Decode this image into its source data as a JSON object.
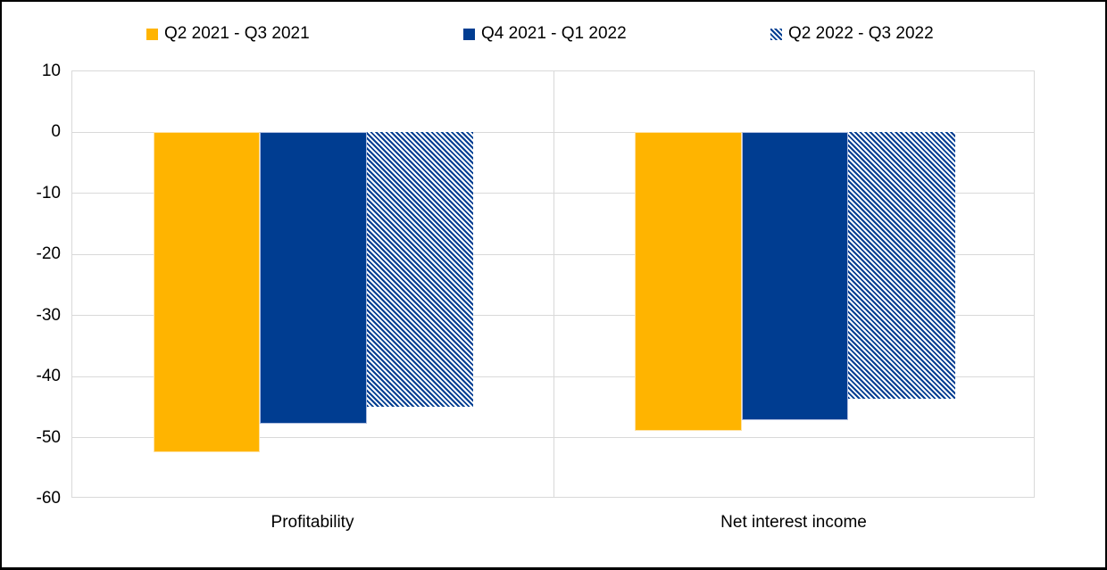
{
  "chart_data": {
    "type": "bar",
    "title": "",
    "categories": [
      "Profitability",
      "Net interest income"
    ],
    "series": [
      {
        "name": "Q2 2021 - Q3 2021",
        "color": "#FFB400",
        "pattern": "solid",
        "values": [
          -52.4,
          -48.9
        ]
      },
      {
        "name": "Q4 2021 - Q1 2022",
        "color": "#003D91",
        "pattern": "solid",
        "values": [
          -47.7,
          -47.1
        ]
      },
      {
        "name": "Q2 2022 - Q3 2022",
        "color": "#003D91",
        "pattern": "diagonal-stripes",
        "values": [
          -45.0,
          -43.6
        ]
      }
    ],
    "xlabel": "",
    "ylabel": "",
    "ylim": [
      -60,
      10
    ],
    "yticks": [
      10,
      0,
      -10,
      -20,
      -30,
      -40,
      -50,
      -60
    ],
    "grid": true,
    "legend_position": "top"
  },
  "colors": {
    "grid": "#d9d9d9",
    "frame_border": "#000000",
    "hatch_background": "#ffffff",
    "bar_edge_orange": "#ffe2a3",
    "bar_edge_blue": "#aebddf"
  }
}
